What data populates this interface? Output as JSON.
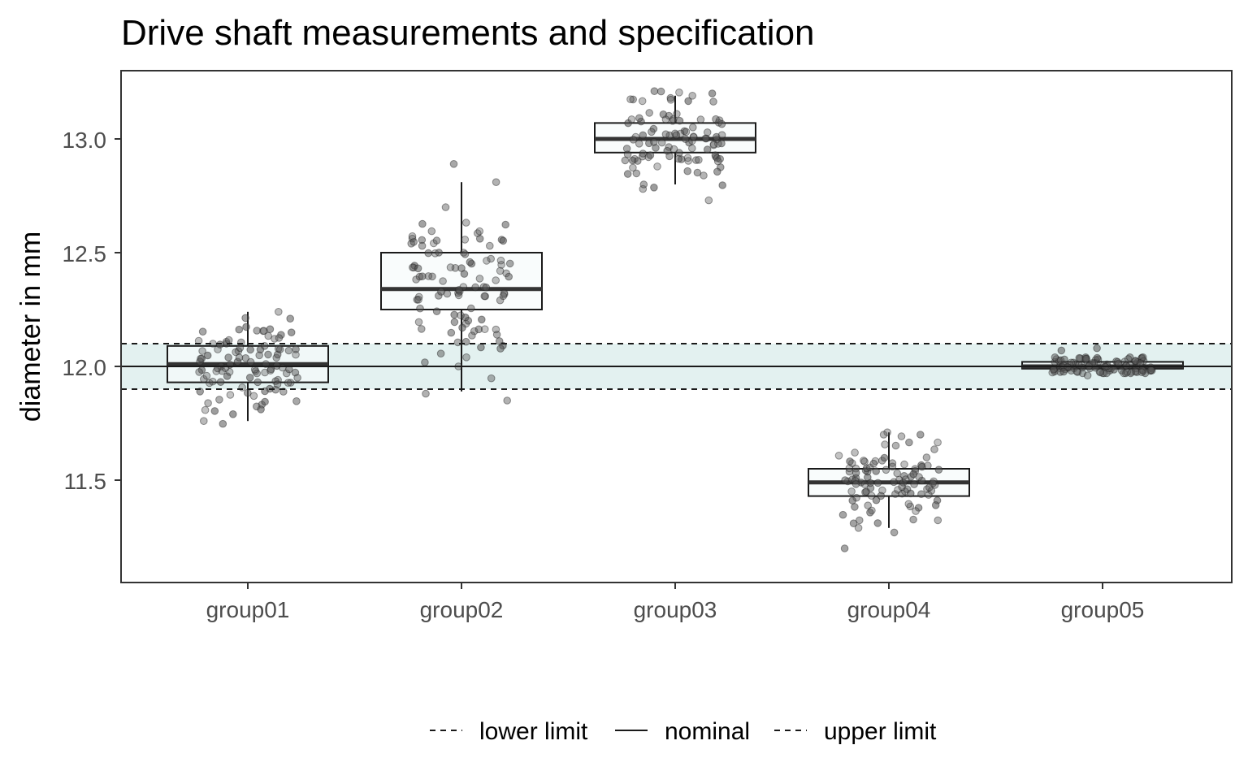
{
  "chart_data": {
    "type": "boxplot",
    "title": "Drive shaft measurements and specification",
    "ylabel": "diameter in mm",
    "xlabel": "",
    "ylim": [
      11.05,
      13.3
    ],
    "yticks": [
      11.5,
      12.0,
      12.5,
      13.0
    ],
    "ytick_labels": [
      "11.5",
      "12.0",
      "12.5",
      "13.0"
    ],
    "categories": [
      "group01",
      "group02",
      "group03",
      "group04",
      "group05"
    ],
    "boxes": [
      {
        "name": "group01",
        "whisker_low": 11.76,
        "q1": 11.93,
        "median": 12.01,
        "q3": 12.09,
        "whisker_high": 12.24
      },
      {
        "name": "group02",
        "whisker_low": 11.89,
        "q1": 12.25,
        "median": 12.34,
        "q3": 12.5,
        "whisker_high": 12.81
      },
      {
        "name": "group03",
        "whisker_low": 12.8,
        "q1": 12.94,
        "median": 13.0,
        "q3": 13.07,
        "whisker_high": 13.19
      },
      {
        "name": "group04",
        "whisker_low": 11.29,
        "q1": 11.43,
        "median": 11.49,
        "q3": 11.55,
        "whisker_high": 11.71
      },
      {
        "name": "group05",
        "whisker_low": 11.99,
        "q1": 11.99,
        "median": 12.0,
        "q3": 12.02,
        "whisker_high": 12.02
      }
    ],
    "points": [
      {
        "center": 12.01,
        "spread": 0.1,
        "n": 100,
        "extra": [
          12.24,
          11.76,
          12.21,
          11.79
        ]
      },
      {
        "center": 12.36,
        "spread": 0.18,
        "n": 100,
        "extra": [
          12.89,
          12.81,
          11.85,
          12.04,
          11.88,
          12.0
        ]
      },
      {
        "center": 13.0,
        "spread": 0.1,
        "n": 100,
        "extra": [
          13.2,
          13.19,
          12.73,
          12.8
        ]
      },
      {
        "center": 11.49,
        "spread": 0.09,
        "n": 100,
        "extra": [
          11.71,
          11.7,
          11.2,
          11.29,
          11.31
        ]
      },
      {
        "center": 12.0,
        "spread": 0.025,
        "n": 100,
        "extra": [
          12.08,
          12.07,
          11.96
        ]
      }
    ],
    "reference_lines": [
      {
        "name": "lower limit",
        "value": 11.9,
        "style": "dashed"
      },
      {
        "name": "nominal",
        "value": 12.0,
        "style": "solid"
      },
      {
        "name": "upper limit",
        "value": 12.1,
        "style": "dashed"
      }
    ],
    "spec_band": {
      "low": 11.9,
      "high": 12.1
    },
    "colors": {
      "band": "#e3f1f0",
      "box_fill": "#f6fbfb",
      "points": "#555555",
      "lines": "#1a1a1a",
      "panel_border": "#333333"
    },
    "legend": {
      "position": "bottom",
      "entries": [
        {
          "label": "lower limit",
          "style": "dashed"
        },
        {
          "label": "nominal",
          "style": "solid"
        },
        {
          "label": "upper limit",
          "style": "dashed"
        }
      ]
    },
    "grid": false
  }
}
